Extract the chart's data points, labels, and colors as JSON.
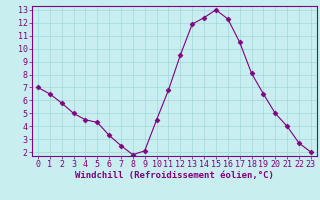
{
  "x": [
    0,
    1,
    2,
    3,
    4,
    5,
    6,
    7,
    8,
    9,
    10,
    11,
    12,
    13,
    14,
    15,
    16,
    17,
    18,
    19,
    20,
    21,
    22,
    23
  ],
  "y": [
    7.0,
    6.5,
    5.8,
    5.0,
    4.5,
    4.3,
    3.3,
    2.5,
    1.8,
    2.1,
    4.5,
    6.8,
    9.5,
    11.9,
    12.4,
    13.0,
    12.3,
    10.5,
    8.1,
    6.5,
    5.0,
    4.0,
    2.7,
    2.0
  ],
  "line_color": "#800080",
  "marker": "D",
  "marker_size": 2.5,
  "bg_color": "#c8eef0",
  "grid_color": "#a0d8dc",
  "xlabel": "Windchill (Refroidissement éolien,°C)",
  "xlim_min": -0.5,
  "xlim_max": 23.5,
  "ylim_min": 1.7,
  "ylim_max": 13.3,
  "xticks": [
    0,
    1,
    2,
    3,
    4,
    5,
    6,
    7,
    8,
    9,
    10,
    11,
    12,
    13,
    14,
    15,
    16,
    17,
    18,
    19,
    20,
    21,
    22,
    23
  ],
  "yticks": [
    2,
    3,
    4,
    5,
    6,
    7,
    8,
    9,
    10,
    11,
    12,
    13
  ],
  "xlabel_fontsize": 6.5,
  "tick_fontsize": 6.0
}
